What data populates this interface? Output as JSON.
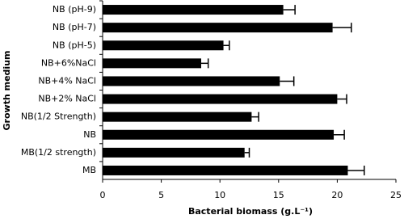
{
  "chart_data": {
    "type": "hbar",
    "xlabel": "Bacterial biomass (g.L⁻¹)",
    "ylabel": "Growth medium",
    "categories": [
      "NB (pH-9)",
      "NB (pH-7)",
      "NB (pH-5)",
      "NB+6%NaCl",
      "NB+4% NaCl",
      "NB+2% NaCl",
      "NB(1/2 Strength)",
      "NB",
      "MB(1/2 strength)",
      "MB"
    ],
    "values": [
      15.4,
      19.6,
      10.3,
      8.4,
      15.1,
      20.0,
      12.7,
      19.7,
      12.1,
      20.9
    ],
    "errors": [
      1.0,
      1.6,
      0.5,
      0.6,
      1.2,
      0.8,
      0.6,
      0.9,
      0.4,
      1.4
    ],
    "color": "#000000",
    "xlim": [
      0,
      25
    ],
    "xticks": [
      0,
      5,
      10,
      15,
      20,
      25
    ]
  }
}
